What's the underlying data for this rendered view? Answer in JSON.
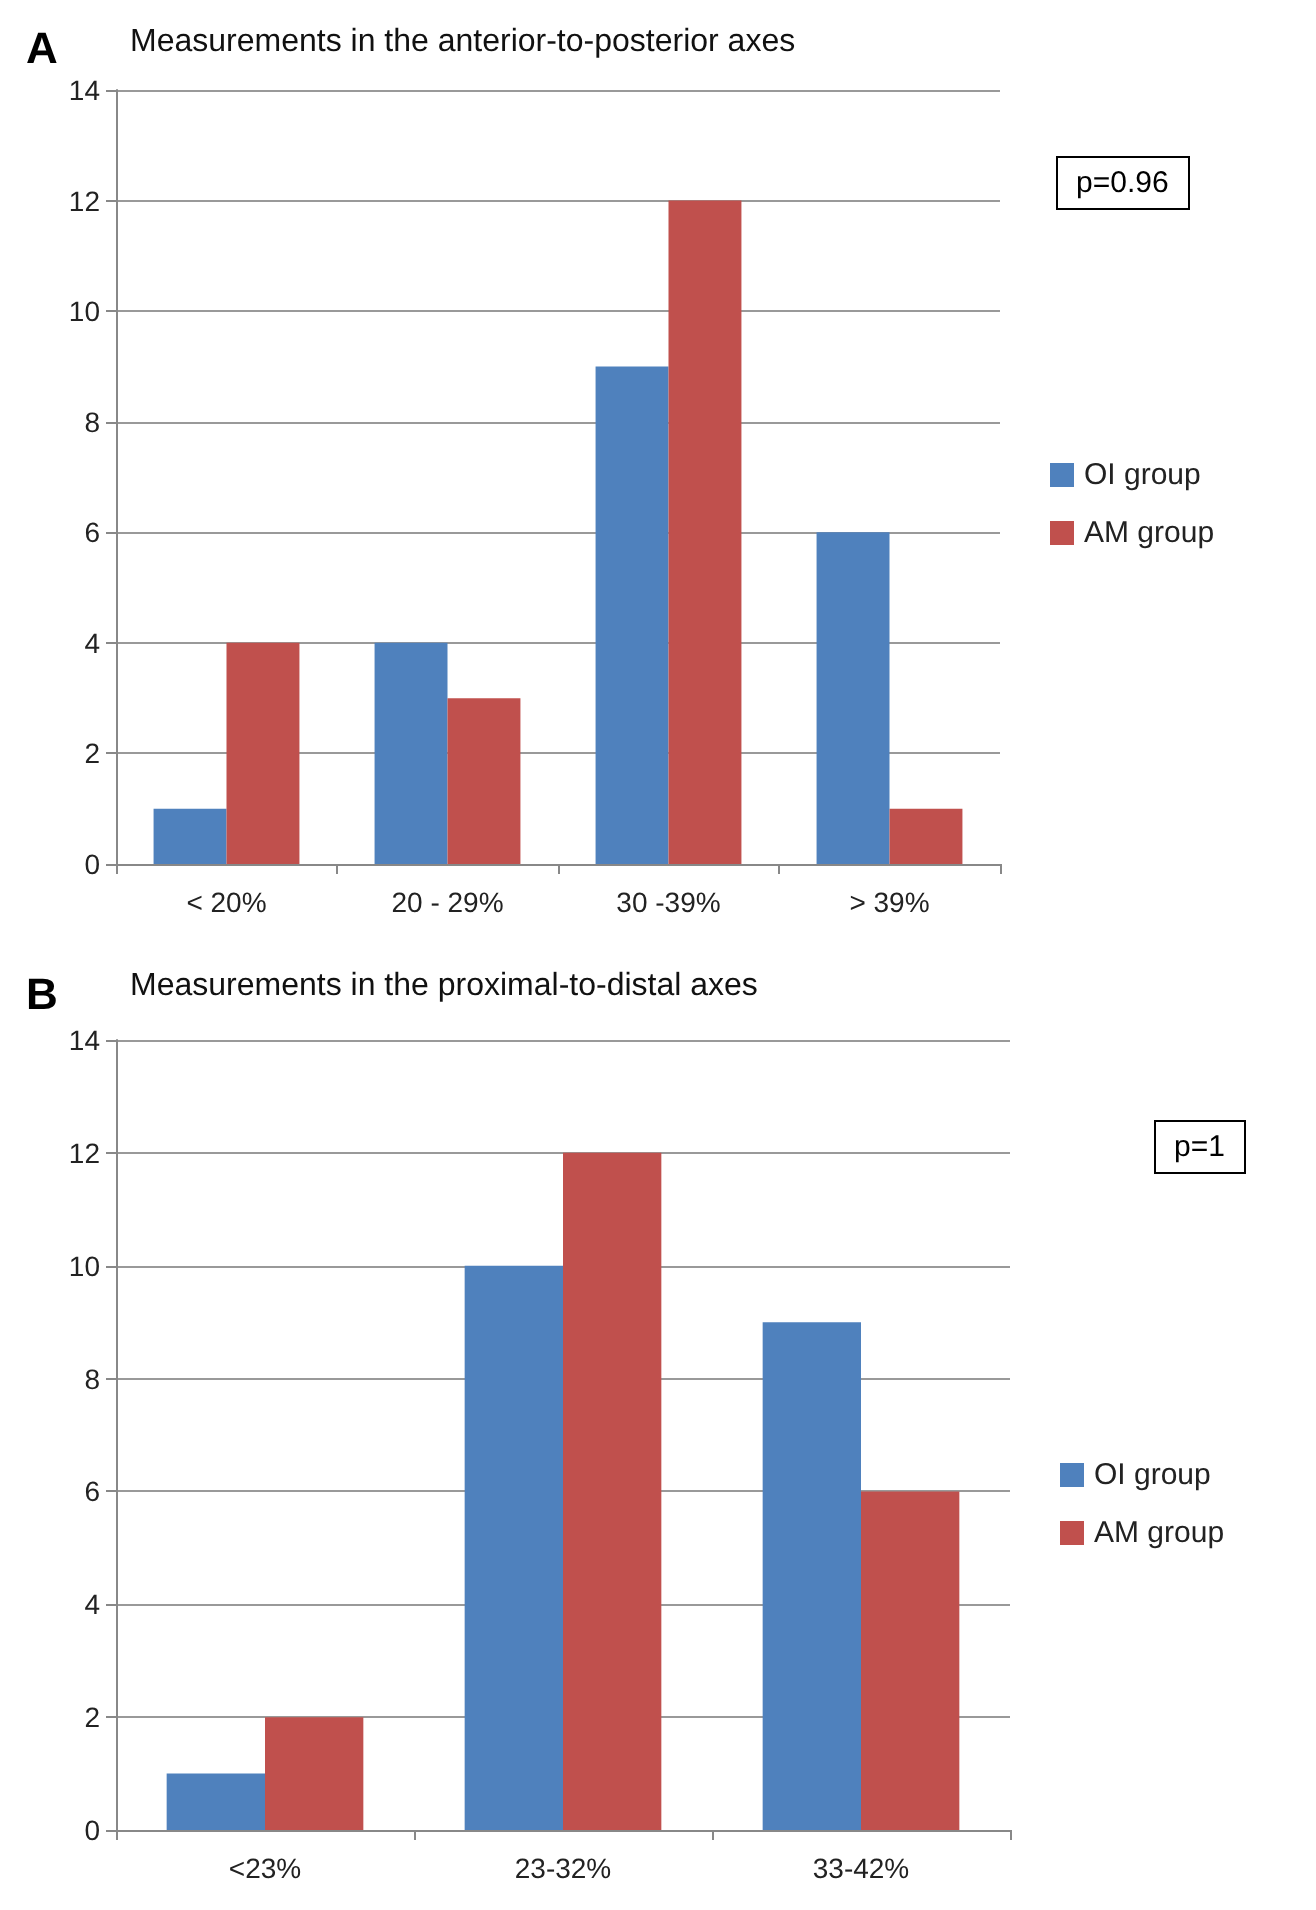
{
  "chart_data": [
    {
      "type": "bar",
      "title": "Measurements in the anterior-to-posterior axes",
      "annotations": [
        "A",
        "p=0.96"
      ],
      "categories": [
        "< 20%",
        "20 - 29%",
        "30 -39%",
        "> 39%"
      ],
      "series": [
        {
          "name": "OI group",
          "color": "#4f81bd",
          "values": [
            1,
            4,
            9,
            6
          ]
        },
        {
          "name": "AM group",
          "color": "#c0504d",
          "values": [
            4,
            3,
            12,
            1
          ]
        }
      ],
      "ylim": [
        0,
        14
      ],
      "yticks": [
        0,
        2,
        4,
        6,
        8,
        10,
        12,
        14
      ],
      "grid": "y",
      "legend": "right"
    },
    {
      "type": "bar",
      "title": "Measurements in the proximal-to-distal axes",
      "annotations": [
        "B",
        "p=1"
      ],
      "categories": [
        "<23%",
        "23-32%",
        "33-42%"
      ],
      "series": [
        {
          "name": "OI group",
          "color": "#4f81bd",
          "values": [
            1,
            10,
            9
          ]
        },
        {
          "name": "AM group",
          "color": "#c0504d",
          "values": [
            2,
            12,
            6
          ]
        }
      ],
      "ylim": [
        0,
        14
      ],
      "yticks": [
        0,
        2,
        4,
        6,
        8,
        10,
        12,
        14
      ],
      "grid": "y",
      "legend": "right"
    }
  ]
}
